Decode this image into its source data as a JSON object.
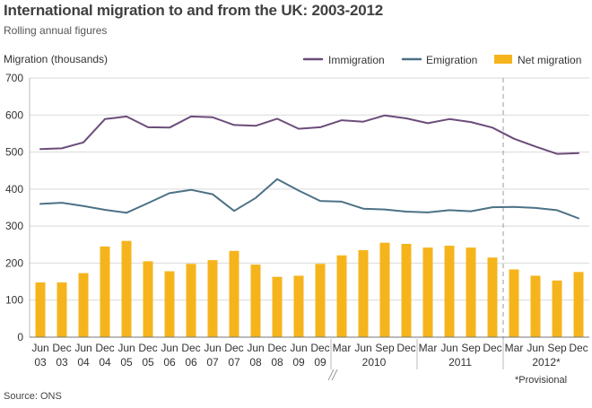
{
  "chart_data": {
    "type": "bar+line",
    "title": "International migration to and from the UK: 2003-2012",
    "subtitle": "Rolling annual figures",
    "ylabel": "Migration (thousands)",
    "ylim": [
      0,
      700
    ],
    "yticks": [
      "0",
      "100",
      "200",
      "300",
      "400",
      "500",
      "600",
      "700"
    ],
    "source": "Source: ONS",
    "note": "*Provisional",
    "legend": {
      "immigration": "Immigration",
      "emigration": "Emigration",
      "net": "Net migration"
    },
    "colors": {
      "immigration": "#6b4c7a",
      "emigration": "#4d7186",
      "net": "#f6b41c",
      "grid": "#d9d9d9"
    },
    "categories": [
      {
        "label": "Jun",
        "year": "03"
      },
      {
        "label": "Dec",
        "year": "03"
      },
      {
        "label": "Jun",
        "year": "04"
      },
      {
        "label": "Dec",
        "year": "04"
      },
      {
        "label": "Jun",
        "year": "05"
      },
      {
        "label": "Dec",
        "year": "05"
      },
      {
        "label": "Jun",
        "year": "06"
      },
      {
        "label": "Dec",
        "year": "06"
      },
      {
        "label": "Jun",
        "year": "07"
      },
      {
        "label": "Dec",
        "year": "07"
      },
      {
        "label": "Jun",
        "year": "08"
      },
      {
        "label": "Dec",
        "year": "08"
      },
      {
        "label": "Jun",
        "year": "09"
      },
      {
        "label": "Dec",
        "year": "09"
      },
      {
        "label": "Mar",
        "year": ""
      },
      {
        "label": "Jun",
        "year": ""
      },
      {
        "label": "Sep",
        "year": ""
      },
      {
        "label": "Dec",
        "year": ""
      },
      {
        "label": "Mar",
        "year": ""
      },
      {
        "label": "Jun",
        "year": ""
      },
      {
        "label": "Sep",
        "year": ""
      },
      {
        "label": "Dec",
        "year": ""
      },
      {
        "label": "Mar",
        "year": ""
      },
      {
        "label": "Jun",
        "year": ""
      },
      {
        "label": "Sep",
        "year": ""
      },
      {
        "label": "Dec",
        "year": ""
      }
    ],
    "year_groups": [
      {
        "label": "2010",
        "from": 14,
        "to": 17
      },
      {
        "label": "2011",
        "from": 18,
        "to": 21
      },
      {
        "label": "2012*",
        "from": 22,
        "to": 25
      }
    ],
    "provisional_from": 22,
    "series": [
      {
        "name": "Immigration",
        "key": "immigration",
        "values": [
          508,
          510,
          526,
          589,
          596,
          567,
          566,
          596,
          594,
          573,
          571,
          590,
          563,
          567,
          586,
          582,
          599,
          591,
          578,
          589,
          581,
          566,
          536,
          515,
          495,
          497
        ]
      },
      {
        "name": "Emigration",
        "key": "emigration",
        "values": [
          360,
          363,
          354,
          344,
          336,
          362,
          389,
          398,
          386,
          341,
          376,
          427,
          396,
          368,
          366,
          347,
          345,
          339,
          337,
          343,
          340,
          351,
          352,
          349,
          343,
          321
        ]
      },
      {
        "name": "Net migration",
        "key": "net",
        "values": [
          148,
          148,
          173,
          245,
          260,
          205,
          178,
          198,
          208,
          233,
          196,
          163,
          166,
          198,
          221,
          235,
          255,
          252,
          242,
          247,
          242,
          215,
          183,
          166,
          153,
          176
        ]
      }
    ]
  }
}
